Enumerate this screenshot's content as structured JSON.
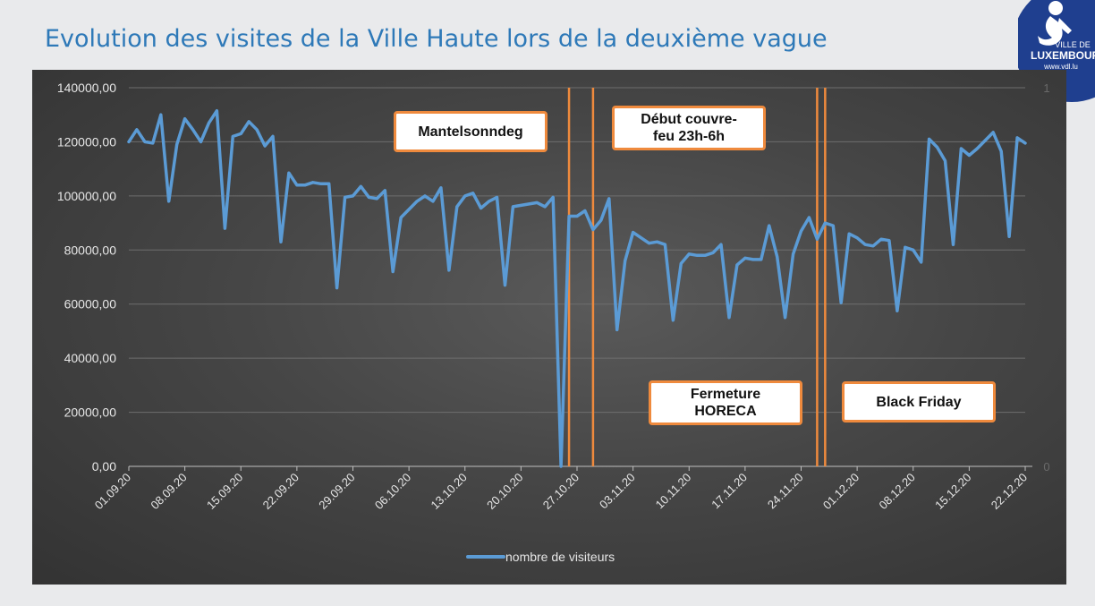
{
  "title": "Evolution des visites de la Ville Haute lors de la deuxième vague",
  "logo": {
    "icon": "ville-de-luxembourg-logo",
    "line1": "VILLE DE",
    "line2": "LUXEMBOURG",
    "url": "www.vdl.lu",
    "color": "#1f3f8f"
  },
  "chart_data": {
    "type": "line",
    "xlabel": "",
    "ylabel": "",
    "ylim": [
      0,
      140000
    ],
    "yticks": [
      0,
      20000,
      40000,
      60000,
      80000,
      100000,
      120000,
      140000
    ],
    "ytick_labels": [
      "0,00",
      "20000,00",
      "40000,00",
      "60000,00",
      "80000,00",
      "100000,00",
      "120000,00",
      "140000,00"
    ],
    "secondary_axis": {
      "min_label": "0",
      "max_label": "1"
    },
    "grid": true,
    "xtick_labels": [
      "01.09.20",
      "08.09.20",
      "15.09.20",
      "22.09.20",
      "29.09.20",
      "06.10.20",
      "13.10.20",
      "20.10.20",
      "27.10.20",
      "03.11.20",
      "10.11.20",
      "17.11.20",
      "24.11.20",
      "01.12.20",
      "08.12.20",
      "15.12.20",
      "22.12.20"
    ],
    "x_start": "01.09.20",
    "x_end": "22.12.20",
    "legend_position": "bottom",
    "series": [
      {
        "name": "nombre de visiteurs",
        "color": "#5b9bd5",
        "values": [
          120000,
          124500,
          120000,
          119500,
          130000,
          98000,
          119000,
          128500,
          124500,
          120000,
          127000,
          131500,
          88000,
          122000,
          123000,
          127500,
          124500,
          118500,
          122000,
          83000,
          108500,
          104000,
          104000,
          105000,
          104500,
          104500,
          66000,
          99500,
          100000,
          103500,
          99500,
          99000,
          102000,
          72000,
          92000,
          95000,
          98000,
          100000,
          98000,
          103000,
          72500,
          96000,
          100000,
          101000,
          95500,
          98000,
          99500,
          67000,
          96000,
          96500,
          97000,
          97500,
          96000,
          99500,
          0,
          92500,
          92500,
          94500,
          87500,
          91000,
          99000,
          50500,
          76000,
          86500,
          84500,
          82500,
          83000,
          82000,
          54000,
          75000,
          78500,
          78000,
          78000,
          79000,
          82000,
          55000,
          74500,
          77000,
          76500,
          76500,
          89000,
          77500,
          55000,
          78500,
          87000,
          92000,
          84000,
          90000,
          89000,
          60500,
          86000,
          84500,
          82000,
          81500,
          84000,
          83500,
          57500,
          81000,
          80000,
          75500,
          121000,
          118000,
          113000,
          82000,
          117500,
          115000,
          117500,
          120500,
          123500,
          116500,
          85000,
          121500,
          119500
        ]
      }
    ],
    "event_lines": [
      {
        "date": "26.10.20",
        "color": "#ef8a3d"
      },
      {
        "date": "29.10.20",
        "color": "#ef8a3d"
      },
      {
        "date": "26.11.20",
        "color": "#ef8a3d"
      },
      {
        "date": "27.11.20",
        "color": "#ef8a3d"
      }
    ],
    "annotations": [
      {
        "text": "Mantelsonndeg"
      },
      {
        "text": "Début couvre-\nfeu 23h-6h"
      },
      {
        "text": "Fermeture\nHORECA"
      },
      {
        "text": "Black Friday"
      }
    ]
  }
}
